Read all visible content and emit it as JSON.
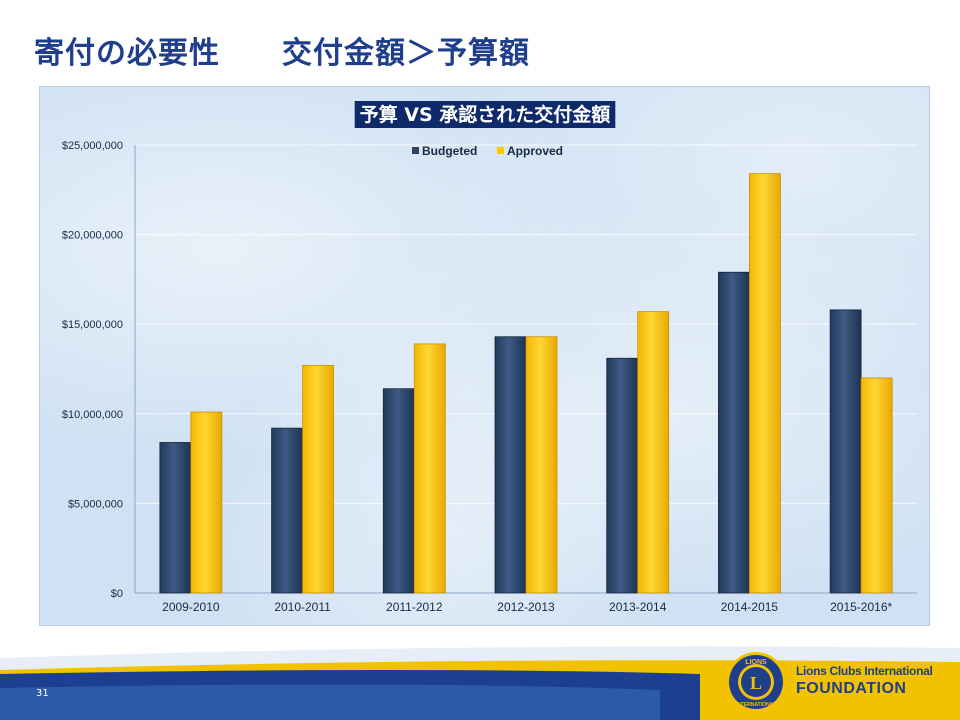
{
  "slide": {
    "title": "寄付の必要性　　交付金額＞予算額",
    "page_number": "31"
  },
  "logo": {
    "org_name": "Lions Clubs International",
    "org_foundation": "FOUNDATION",
    "seal_top_text": "LIONS",
    "seal_bottom_text": "INTERNATIONAL",
    "seal_letter": "L"
  },
  "colors": {
    "budgeted": "#2b4468",
    "approved": "#ffc800",
    "title_box": "#0f2a6b",
    "slide_title": "#1f3e8c"
  },
  "chart_data": {
    "type": "bar",
    "title": "予算 VS 承認された交付金額",
    "categories": [
      "2009-2010",
      "2010-2011",
      "2011-2012",
      "2012-2013",
      "2013-2014",
      "2014-2015",
      "2015-2016*"
    ],
    "series": [
      {
        "name": "Budgeted",
        "values": [
          8400000,
          9200000,
          11400000,
          14300000,
          13100000,
          17900000,
          15800000
        ]
      },
      {
        "name": "Approved",
        "values": [
          10100000,
          12700000,
          13900000,
          14300000,
          15700000,
          23400000,
          12000000
        ]
      }
    ],
    "y_ticks": [
      "$0",
      "$5,000,000",
      "$10,000,000",
      "$15,000,000",
      "$20,000,000",
      "$25,000,000"
    ],
    "ylim": [
      0,
      25000000
    ],
    "grid": true,
    "legend_position": "top-center"
  }
}
